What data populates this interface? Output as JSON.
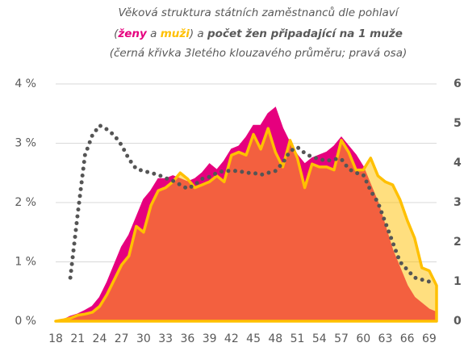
{
  "chart_data": {
    "type": "area",
    "title": "Věková struktura státních zaměstnanců dle pohlaví",
    "subtitle_parts": [
      "(",
      "ženy",
      " a ",
      "muži",
      ") a ",
      "počet žen připadající na 1 muže"
    ],
    "note": "(černá křivka 3letého klouzavého průměru; pravá osa)",
    "x": [
      18,
      19,
      20,
      21,
      22,
      23,
      24,
      25,
      26,
      27,
      28,
      29,
      30,
      31,
      32,
      33,
      34,
      35,
      36,
      37,
      38,
      39,
      40,
      41,
      42,
      43,
      44,
      45,
      46,
      47,
      48,
      49,
      50,
      51,
      52,
      53,
      54,
      55,
      56,
      57,
      58,
      59,
      60,
      61,
      62,
      63,
      64,
      65,
      66,
      67,
      68,
      69,
      70
    ],
    "xlim": [
      18,
      70
    ],
    "xticks": [
      18,
      21,
      24,
      27,
      30,
      33,
      36,
      39,
      42,
      45,
      48,
      51,
      54,
      57,
      60,
      63,
      66,
      69
    ],
    "ylim": [
      0,
      4
    ],
    "yticks": [
      {
        "value": 0,
        "label": "0 %"
      },
      {
        "value": 1,
        "label": "1 %"
      },
      {
        "value": 2,
        "label": "2 %"
      },
      {
        "value": 3,
        "label": "3 %"
      },
      {
        "value": 4,
        "label": "4 %"
      }
    ],
    "y2lim": [
      0,
      6
    ],
    "y2ticks": [
      0,
      1,
      2,
      3,
      4,
      5,
      6
    ],
    "grid": true,
    "series": [
      {
        "name": "ženy",
        "color": "#e6007e",
        "values": [
          0,
          0.02,
          0.08,
          0.12,
          0.18,
          0.25,
          0.4,
          0.65,
          0.95,
          1.25,
          1.45,
          1.75,
          2.05,
          2.2,
          2.4,
          2.4,
          2.45,
          2.4,
          2.35,
          2.4,
          2.5,
          2.65,
          2.55,
          2.7,
          2.9,
          2.95,
          3.1,
          3.3,
          3.3,
          3.5,
          3.6,
          3.25,
          3.0,
          2.8,
          2.65,
          2.75,
          2.8,
          2.85,
          2.95,
          3.1,
          2.95,
          2.8,
          2.6,
          2.3,
          2.0,
          1.6,
          1.2,
          0.9,
          0.6,
          0.4,
          0.3,
          0.2,
          0.15
        ]
      },
      {
        "name": "muži",
        "color": "#ffc000",
        "values": [
          0,
          0.02,
          0.05,
          0.1,
          0.12,
          0.15,
          0.25,
          0.45,
          0.7,
          0.95,
          1.1,
          1.6,
          1.5,
          1.95,
          2.2,
          2.25,
          2.35,
          2.5,
          2.4,
          2.25,
          2.3,
          2.35,
          2.45,
          2.35,
          2.8,
          2.85,
          2.8,
          3.15,
          2.9,
          3.25,
          2.85,
          2.6,
          3.05,
          2.75,
          2.25,
          2.65,
          2.6,
          2.6,
          2.55,
          3.05,
          2.85,
          2.55,
          2.55,
          2.75,
          2.45,
          2.35,
          2.3,
          2.05,
          1.7,
          1.4,
          0.9,
          0.85,
          0.6
        ]
      },
      {
        "name": "počet žen připadající na 1 muže",
        "color": "#555555",
        "axis": "y2",
        "values": [
          null,
          null,
          1.1,
          2.7,
          4.2,
          4.7,
          4.95,
          4.85,
          4.7,
          4.45,
          4.1,
          3.85,
          3.8,
          3.75,
          3.7,
          3.62,
          3.55,
          3.45,
          3.35,
          3.45,
          3.6,
          3.65,
          3.75,
          3.8,
          3.8,
          3.8,
          3.75,
          3.75,
          3.7,
          3.75,
          3.8,
          4.0,
          4.3,
          4.4,
          4.25,
          4.15,
          4.1,
          4.05,
          4.1,
          4.1,
          3.85,
          3.75,
          3.7,
          3.3,
          3.0,
          2.5,
          2.0,
          1.5,
          1.3,
          1.1,
          1.05,
          1.0,
          null
        ]
      }
    ]
  }
}
